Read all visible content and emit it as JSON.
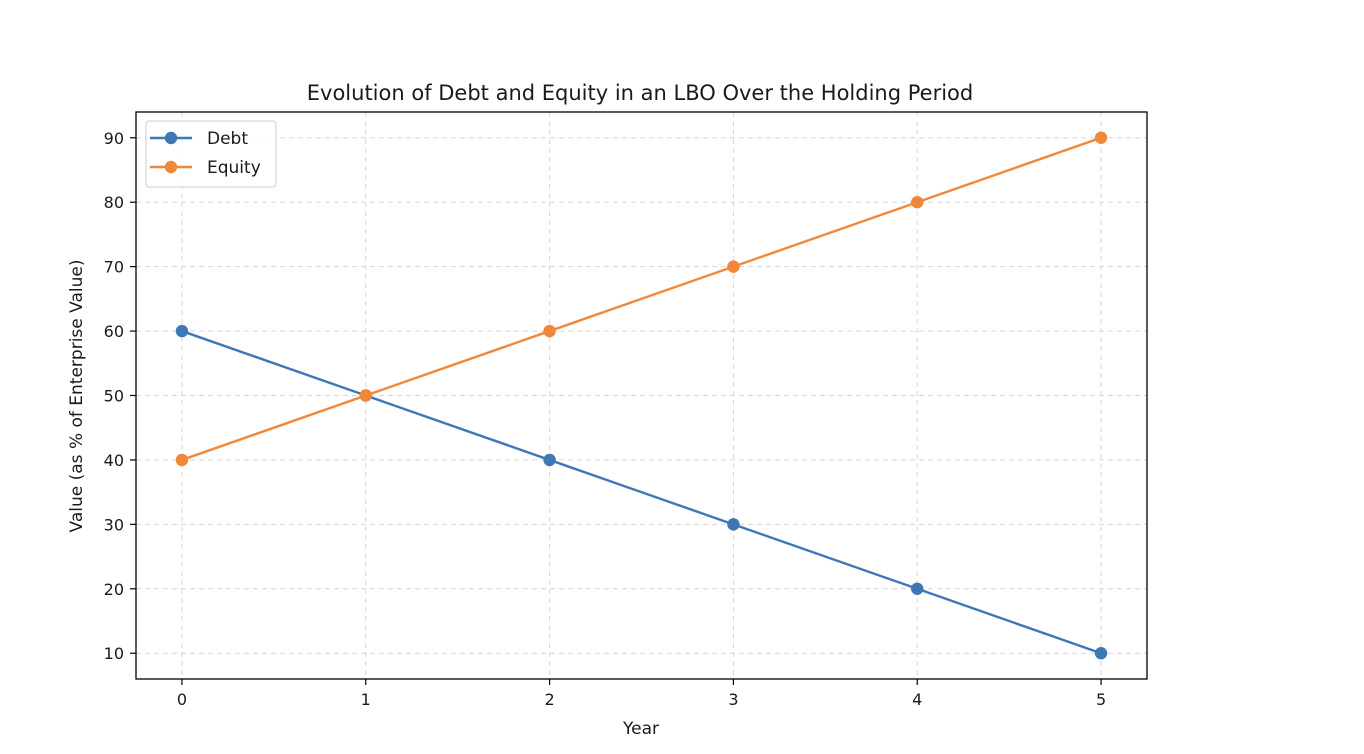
{
  "chart_data": {
    "type": "line",
    "title": "Evolution of Debt and Equity in an LBO Over the Holding Period",
    "xlabel": "Year",
    "ylabel": "Value (as % of Enterprise Value)",
    "x": [
      0,
      1,
      2,
      3,
      4,
      5
    ],
    "x_ticks": [
      "0",
      "1",
      "2",
      "3",
      "4",
      "5"
    ],
    "y_ticks": [
      "10",
      "20",
      "30",
      "40",
      "50",
      "60",
      "70",
      "80",
      "90"
    ],
    "xlim": [
      -0.25,
      5.25
    ],
    "ylim": [
      6,
      94
    ],
    "grid": true,
    "legend_position": "top-left",
    "series": [
      {
        "name": "Debt",
        "color": "#3d78b4",
        "marker": "circle",
        "values": [
          60,
          50,
          40,
          30,
          20,
          10
        ]
      },
      {
        "name": "Equity",
        "color": "#f0883a",
        "marker": "circle",
        "values": [
          40,
          50,
          60,
          70,
          80,
          90
        ]
      }
    ]
  }
}
